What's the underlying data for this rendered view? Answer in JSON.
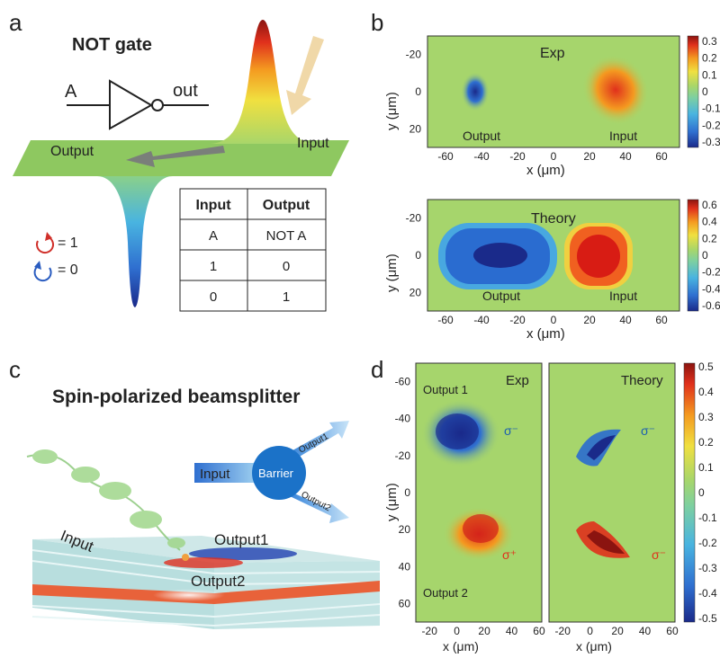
{
  "panel_a": {
    "letter": "a",
    "title": "NOT gate",
    "gate_input": "A",
    "gate_output": "out",
    "plane_output_label": "Output",
    "plane_input_label": "Input",
    "legend_one": "= 1",
    "legend_zero": "= 0",
    "table": {
      "headers": [
        "Input",
        "Output"
      ],
      "rows": [
        [
          "A",
          "NOT A"
        ],
        [
          "1",
          "0"
        ],
        [
          "0",
          "1"
        ]
      ]
    }
  },
  "panel_b": {
    "letter": "b",
    "colormap": [
      "#1a2a8a",
      "#2f6fd0",
      "#49b4e0",
      "#7ed0a0",
      "#a8d66a",
      "#f0e040",
      "#f49a20",
      "#e0301c",
      "#8b1410"
    ],
    "exp": {
      "title": "Exp",
      "output_label": "Output",
      "input_label": "Input",
      "xlabel": "x (μm)",
      "ylabel": "y (μm)",
      "xticks": [
        "-60",
        "-40",
        "-20",
        "0",
        "20",
        "40",
        "60"
      ],
      "yticks": [
        "-20",
        "0",
        "20"
      ],
      "cbar_ticks": [
        "0.3",
        "0.2",
        "0.1",
        "0",
        "-0.1",
        "-0.2",
        "-0.3"
      ]
    },
    "theory": {
      "title": "Theory",
      "output_label": "Output",
      "input_label": "Input",
      "xlabel": "x (μm)",
      "ylabel": "y (μm)",
      "xticks": [
        "-60",
        "-40",
        "-20",
        "0",
        "20",
        "40",
        "60"
      ],
      "yticks": [
        "-20",
        "0",
        "20"
      ],
      "cbar_ticks": [
        "0.6",
        "0.4",
        "0.2",
        "0",
        "-0.2",
        "-0.4",
        "-0.6"
      ]
    }
  },
  "panel_c": {
    "letter": "c",
    "title": "Spin-polarized beamsplitter",
    "diagram_input": "Input",
    "barrier": "Barrier",
    "output1_arrow": "Output1",
    "output2_arrow": "Output2",
    "beam_input": "Input",
    "beam_output1": "Output1",
    "beam_output2": "Output2"
  },
  "panel_d": {
    "letter": "d",
    "exp_title": "Exp",
    "theory_title": "Theory",
    "output1_label": "Output 1",
    "output2_label": "Output 2",
    "sigma_minus": "σ⁻",
    "sigma_plus": "σ⁺",
    "xlabel": "x (μm)",
    "ylabel": "y (μm)",
    "xticks": [
      "-20",
      "0",
      "20",
      "40",
      "60"
    ],
    "yticks": [
      "-60",
      "-40",
      "-20",
      "0",
      "20",
      "40",
      "60"
    ],
    "cbar_ticks": [
      "0.5",
      "0.4",
      "0.3",
      "0.2",
      "0.1",
      "0",
      "-0.1",
      "-0.2",
      "-0.3",
      "-0.4",
      "-0.5"
    ]
  }
}
